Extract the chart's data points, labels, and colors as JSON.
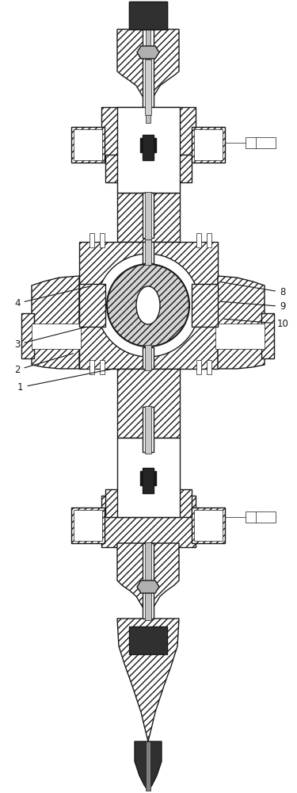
{
  "bg_color": "#ffffff",
  "line_color": "#1a1a1a",
  "figsize": [
    3.75,
    10.0
  ],
  "dpi": 100
}
